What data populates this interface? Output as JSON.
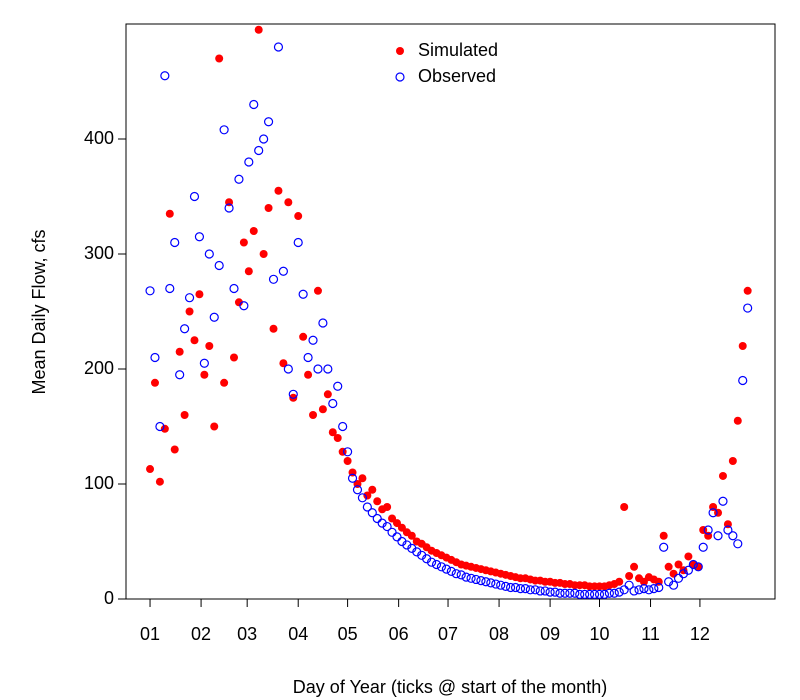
{
  "chart_data": {
    "type": "scatter",
    "x_label": "Day of Year (ticks @ start of the month)",
    "y_label": "Mean Daily Flow, cfs",
    "xlim": [
      -13.6,
      380.6
    ],
    "ylim": [
      0,
      500
    ],
    "xticks": [
      {
        "value": 1,
        "label": "01"
      },
      {
        "value": 32,
        "label": "02"
      },
      {
        "value": 60,
        "label": "03"
      },
      {
        "value": 91,
        "label": "04"
      },
      {
        "value": 121,
        "label": "05"
      },
      {
        "value": 152,
        "label": "06"
      },
      {
        "value": 182,
        "label": "07"
      },
      {
        "value": 213,
        "label": "08"
      },
      {
        "value": 244,
        "label": "09"
      },
      {
        "value": 274,
        "label": "10"
      },
      {
        "value": 305,
        "label": "11"
      },
      {
        "value": 335,
        "label": "12"
      }
    ],
    "yticks": [
      0,
      100,
      200,
      300,
      400
    ],
    "legend": "top",
    "x": [
      1,
      4,
      7,
      10,
      13,
      16,
      19,
      22,
      25,
      28,
      31,
      34,
      37,
      40,
      43,
      46,
      49,
      52,
      55,
      58,
      61,
      64,
      67,
      70,
      73,
      76,
      79,
      82,
      85,
      88,
      91,
      94,
      97,
      100,
      103,
      106,
      109,
      112,
      115,
      118,
      121,
      124,
      127,
      130,
      133,
      136,
      139,
      142,
      145,
      148,
      151,
      154,
      157,
      160,
      163,
      166,
      169,
      172,
      175,
      178,
      181,
      184,
      187,
      190,
      193,
      196,
      199,
      202,
      205,
      208,
      211,
      214,
      217,
      220,
      223,
      226,
      229,
      232,
      235,
      238,
      241,
      244,
      247,
      250,
      253,
      256,
      259,
      262,
      265,
      268,
      271,
      274,
      277,
      280,
      283,
      286,
      289,
      292,
      295,
      298,
      301,
      304,
      307,
      310,
      313,
      316,
      319,
      322,
      325,
      328,
      331,
      334,
      337,
      340,
      343,
      346,
      349,
      352,
      355,
      358,
      361,
      364
    ],
    "series": [
      {
        "name": "Simulated",
        "color": "#ff0000",
        "filled": true,
        "values": [
          113,
          188,
          102,
          148,
          335,
          130,
          215,
          160,
          250,
          225,
          265,
          195,
          220,
          150,
          470,
          188,
          345,
          210,
          258,
          310,
          285,
          320,
          495,
          300,
          340,
          235,
          355,
          205,
          345,
          175,
          333,
          228,
          195,
          160,
          268,
          165,
          178,
          145,
          140,
          128,
          120,
          110,
          100,
          105,
          90,
          95,
          85,
          78,
          80,
          70,
          66,
          62,
          58,
          55,
          50,
          48,
          45,
          42,
          40,
          38,
          36,
          34,
          32,
          30,
          29,
          28,
          27,
          26,
          25,
          24,
          23,
          22,
          21,
          20,
          19,
          18,
          18,
          17,
          16,
          16,
          15,
          15,
          14,
          14,
          13,
          13,
          12,
          12,
          12,
          11,
          11,
          11,
          11,
          12,
          13,
          15,
          80,
          20,
          28,
          18,
          15,
          19,
          17,
          15,
          55,
          28,
          22,
          30,
          25,
          37,
          30,
          28,
          60,
          55,
          80,
          75,
          107,
          65,
          120,
          155,
          220,
          268
        ]
      },
      {
        "name": "Observed",
        "color": "#0000ff",
        "filled": false,
        "values": [
          268,
          210,
          150,
          455,
          270,
          310,
          195,
          235,
          262,
          350,
          315,
          205,
          300,
          245,
          290,
          408,
          340,
          270,
          365,
          255,
          380,
          430,
          390,
          400,
          415,
          278,
          480,
          285,
          200,
          178,
          310,
          265,
          210,
          225,
          200,
          240,
          200,
          170,
          185,
          150,
          128,
          105,
          95,
          88,
          80,
          75,
          70,
          66,
          63,
          58,
          54,
          50,
          47,
          44,
          41,
          38,
          35,
          32,
          30,
          28,
          26,
          24,
          22,
          21,
          19,
          18,
          17,
          16,
          15,
          14,
          13,
          12,
          11,
          10,
          10,
          9,
          9,
          8,
          8,
          7,
          7,
          6,
          6,
          5,
          5,
          5,
          5,
          4,
          4,
          4,
          4,
          4,
          4,
          5,
          5,
          6,
          8,
          12,
          7,
          8,
          9,
          8,
          9,
          10,
          45,
          15,
          12,
          18,
          22,
          25,
          30,
          28,
          45,
          60,
          75,
          55,
          85,
          60,
          55,
          48,
          190,
          253
        ]
      }
    ]
  }
}
